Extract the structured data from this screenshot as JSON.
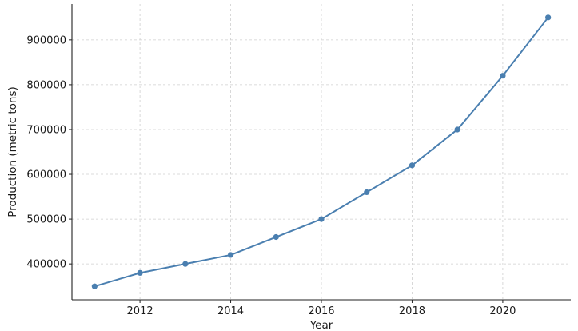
{
  "chart_data": {
    "type": "line",
    "title": "",
    "xlabel": "Year",
    "ylabel": "Production (metric tons)",
    "x": [
      2011,
      2012,
      2013,
      2014,
      2015,
      2016,
      2017,
      2018,
      2019,
      2020,
      2021
    ],
    "series": [
      {
        "values": [
          350000,
          380000,
          400000,
          420000,
          460000,
          500000,
          560000,
          620000,
          700000,
          820000,
          950000
        ],
        "color": "#4a7fb0",
        "marker": "circle"
      }
    ],
    "xticks": [
      2012,
      2014,
      2016,
      2018,
      2020
    ],
    "yticks": [
      400000,
      500000,
      600000,
      700000,
      800000,
      900000
    ],
    "xlim": [
      2010.5,
      2021.5
    ],
    "ylim": [
      320000,
      980000
    ],
    "grid": true,
    "legend": "none"
  }
}
